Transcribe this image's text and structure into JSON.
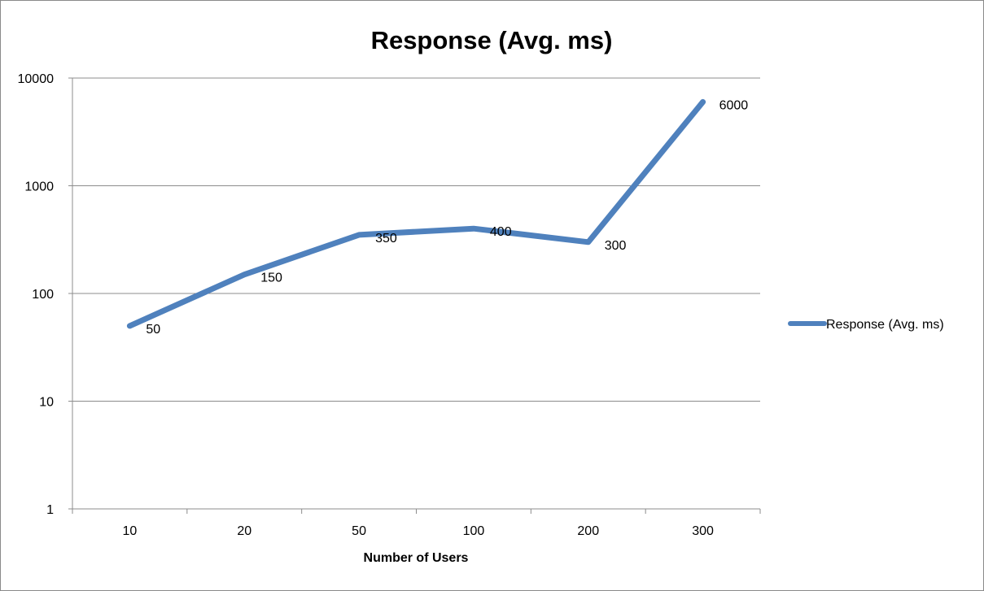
{
  "chart_data": {
    "type": "line",
    "title": "Response (Avg. ms)",
    "xlabel": "Number of Users",
    "ylabel": "",
    "categories": [
      "10",
      "20",
      "50",
      "100",
      "200",
      "300"
    ],
    "y_scale": "log",
    "ylim": [
      1,
      10000
    ],
    "y_ticks": [
      "1",
      "10",
      "100",
      "1000",
      "10000"
    ],
    "grid": "horizontal",
    "legend": "right",
    "series": [
      {
        "name": "Response (Avg. ms)",
        "values": [
          50,
          150,
          350,
          400,
          300,
          6000
        ],
        "labels": [
          "50",
          "150",
          "350",
          "400",
          "300",
          "6000"
        ],
        "color": "#4f81bd"
      }
    ]
  }
}
